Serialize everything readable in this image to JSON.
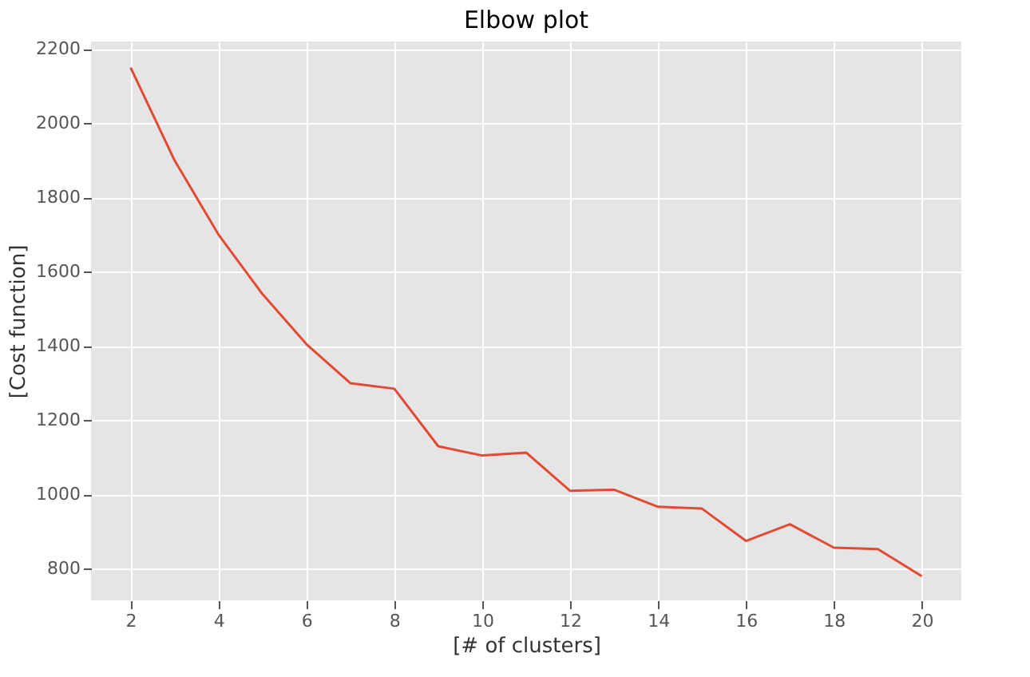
{
  "chart_data": {
    "type": "line",
    "title": "Elbow plot",
    "xlabel": "[# of clusters]",
    "ylabel": "[Cost function]",
    "x": [
      2,
      3,
      4,
      5,
      6,
      7,
      8,
      9,
      10,
      11,
      12,
      13,
      14,
      15,
      16,
      17,
      18,
      19,
      20
    ],
    "series": [
      {
        "color": "#e24a33",
        "values": [
          2150,
          1900,
          1700,
          1540,
          1405,
          1300,
          1285,
          1130,
          1105,
          1113,
          1010,
          1013,
          967,
          962,
          875,
          920,
          857,
          853,
          780
        ]
      }
    ],
    "xlim": [
      1.1,
      20.9
    ],
    "ylim": [
      715,
      2220
    ],
    "xticks": [
      2,
      4,
      6,
      8,
      10,
      12,
      14,
      16,
      18,
      20
    ],
    "yticks": [
      800,
      1000,
      1200,
      1400,
      1600,
      1800,
      2000,
      2200
    ],
    "grid": true,
    "marker": "none",
    "line_style": "solid"
  }
}
